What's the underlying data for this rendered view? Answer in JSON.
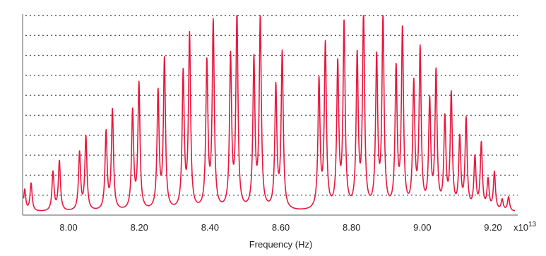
{
  "chart_data": {
    "type": "line",
    "title": "",
    "xlabel": "Frequency (Hz)",
    "ylabel": "",
    "x_multiplier_label": "x10",
    "x_multiplier_exponent": "13",
    "xlim": [
      7.87,
      9.27
    ],
    "ylim": [
      0,
      1.0
    ],
    "grid": "horizontal dotted",
    "x_ticks": [
      "8.00",
      "8.20",
      "8.40",
      "8.60",
      "8.80",
      "9.00",
      "9.20"
    ],
    "x_tick_values": [
      8.0,
      8.2,
      8.4,
      8.6,
      8.8,
      9.0,
      9.2
    ],
    "y_gridlines": 10,
    "baseline": 0.015,
    "line_color": "#e8173f",
    "series": [
      {
        "branch": "P",
        "peaks": [
          {
            "x": 7.885,
            "y": 0.14
          },
          {
            "x": 7.965,
            "y": 0.25
          },
          {
            "x": 8.04,
            "y": 0.37
          },
          {
            "x": 8.115,
            "y": 0.5
          },
          {
            "x": 8.19,
            "y": 0.63
          },
          {
            "x": 8.262,
            "y": 0.75
          },
          {
            "x": 8.333,
            "y": 0.87
          },
          {
            "x": 8.4,
            "y": 0.93
          },
          {
            "x": 8.467,
            "y": 0.97
          },
          {
            "x": 8.533,
            "y": 0.95
          },
          {
            "x": 8.595,
            "y": 0.78
          }
        ]
      },
      {
        "branch": "R",
        "peaks": [
          {
            "x": 8.717,
            "y": 0.82
          },
          {
            "x": 8.77,
            "y": 0.92
          },
          {
            "x": 8.825,
            "y": 0.97
          },
          {
            "x": 8.88,
            "y": 0.96
          },
          {
            "x": 8.935,
            "y": 0.89
          },
          {
            "x": 8.985,
            "y": 0.79
          },
          {
            "x": 9.03,
            "y": 0.68
          },
          {
            "x": 9.073,
            "y": 0.57
          },
          {
            "x": 9.115,
            "y": 0.45
          },
          {
            "x": 9.158,
            "y": 0.33
          },
          {
            "x": 9.195,
            "y": 0.19
          },
          {
            "x": 9.235,
            "y": 0.07
          }
        ]
      }
    ]
  }
}
